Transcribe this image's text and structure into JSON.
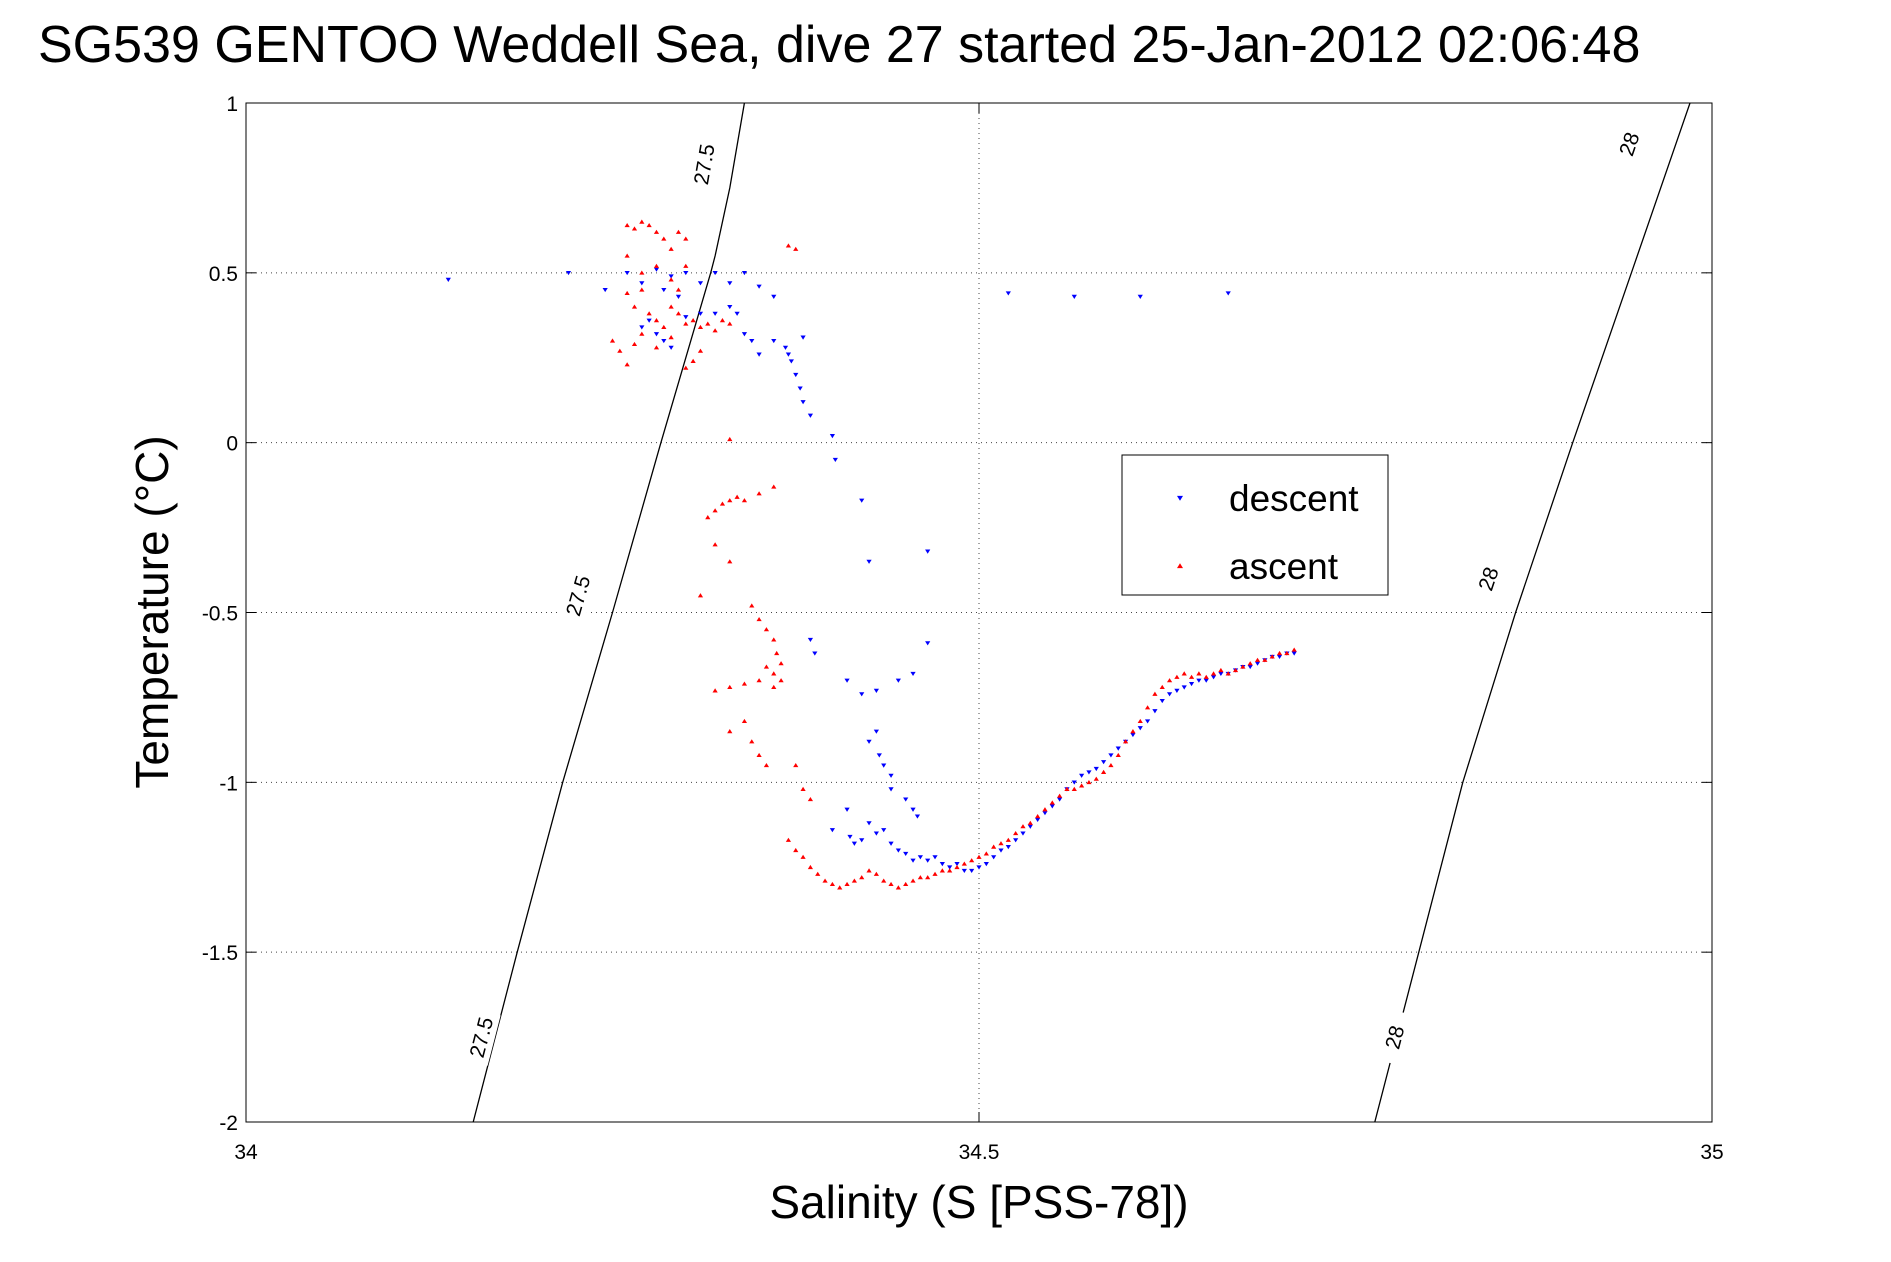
{
  "chart_data": {
    "type": "scatter",
    "title": "SG539 GENTOO Weddell Sea, dive 27 started 25-Jan-2012 02:06:48",
    "xlabel": "Salinity (S [PSS-78])",
    "ylabel": "Temperature (°C)",
    "xlim": [
      34,
      35
    ],
    "ylim": [
      -2,
      1
    ],
    "grid": true,
    "x_ticks": [
      {
        "value": 34,
        "label": "34"
      },
      {
        "value": 34.5,
        "label": "34.5"
      },
      {
        "value": 35,
        "label": "35"
      }
    ],
    "y_ticks": [
      {
        "value": 1,
        "label": "1"
      },
      {
        "value": 0.5,
        "label": "0.5"
      },
      {
        "value": 0,
        "label": "0"
      },
      {
        "value": -0.5,
        "label": "-0.5"
      },
      {
        "value": -1,
        "label": "-1"
      },
      {
        "value": -1.5,
        "label": "-1.5"
      },
      {
        "value": -2,
        "label": "-2"
      }
    ],
    "legend_position": "center-right",
    "series": [
      {
        "name": "descent",
        "color": "#0000ff",
        "marker": "triangle-down",
        "points": [
          [
            34.138,
            0.48
          ],
          [
            34.22,
            0.5
          ],
          [
            34.245,
            0.45
          ],
          [
            34.26,
            0.5
          ],
          [
            34.27,
            0.47
          ],
          [
            34.28,
            0.51
          ],
          [
            34.285,
            0.45
          ],
          [
            34.29,
            0.49
          ],
          [
            34.295,
            0.43
          ],
          [
            34.3,
            0.5
          ],
          [
            34.31,
            0.47
          ],
          [
            34.32,
            0.5
          ],
          [
            34.33,
            0.47
          ],
          [
            34.34,
            0.5
          ],
          [
            34.35,
            0.46
          ],
          [
            34.36,
            0.43
          ],
          [
            34.27,
            0.34
          ],
          [
            34.275,
            0.36
          ],
          [
            34.28,
            0.32
          ],
          [
            34.285,
            0.3
          ],
          [
            34.29,
            0.28
          ],
          [
            34.3,
            0.37
          ],
          [
            34.31,
            0.38
          ],
          [
            34.32,
            0.38
          ],
          [
            34.33,
            0.4
          ],
          [
            34.335,
            0.38
          ],
          [
            34.34,
            0.32
          ],
          [
            34.345,
            0.3
          ],
          [
            34.35,
            0.26
          ],
          [
            34.36,
            0.3
          ],
          [
            34.368,
            0.28
          ],
          [
            34.37,
            0.26
          ],
          [
            34.372,
            0.24
          ],
          [
            34.375,
            0.2
          ],
          [
            34.378,
            0.16
          ],
          [
            34.38,
            0.12
          ],
          [
            34.385,
            0.08
          ],
          [
            34.4,
            0.02
          ],
          [
            34.402,
            -0.05
          ],
          [
            34.38,
            0.31
          ],
          [
            34.42,
            -0.17
          ],
          [
            34.385,
            -0.58
          ],
          [
            34.388,
            -0.62
          ],
          [
            34.41,
            -0.7
          ],
          [
            34.42,
            -0.74
          ],
          [
            34.43,
            -0.73
          ],
          [
            34.445,
            -0.7
          ],
          [
            34.455,
            -0.68
          ],
          [
            34.465,
            -0.59
          ],
          [
            34.425,
            -0.88
          ],
          [
            34.43,
            -0.85
          ],
          [
            34.432,
            -0.92
          ],
          [
            34.435,
            -0.95
          ],
          [
            34.44,
            -0.98
          ],
          [
            34.44,
            -1.02
          ],
          [
            34.45,
            -1.05
          ],
          [
            34.455,
            -1.08
          ],
          [
            34.458,
            -1.1
          ],
          [
            34.4,
            -1.14
          ],
          [
            34.41,
            -1.08
          ],
          [
            34.412,
            -1.16
          ],
          [
            34.415,
            -1.18
          ],
          [
            34.42,
            -1.17
          ],
          [
            34.425,
            -1.12
          ],
          [
            34.43,
            -1.15
          ],
          [
            34.435,
            -1.14
          ],
          [
            34.44,
            -1.18
          ],
          [
            34.445,
            -1.2
          ],
          [
            34.45,
            -1.21
          ],
          [
            34.455,
            -1.23
          ],
          [
            34.46,
            -1.22
          ],
          [
            34.465,
            -1.23
          ],
          [
            34.47,
            -1.22
          ],
          [
            34.475,
            -1.24
          ],
          [
            34.48,
            -1.25
          ],
          [
            34.485,
            -1.24
          ],
          [
            34.49,
            -1.26
          ],
          [
            34.495,
            -1.26
          ],
          [
            34.5,
            -1.25
          ],
          [
            34.505,
            -1.24
          ],
          [
            34.51,
            -1.22
          ],
          [
            34.515,
            -1.2
          ],
          [
            34.52,
            -1.19
          ],
          [
            34.525,
            -1.17
          ],
          [
            34.53,
            -1.15
          ],
          [
            34.535,
            -1.13
          ],
          [
            34.54,
            -1.11
          ],
          [
            34.545,
            -1.09
          ],
          [
            34.55,
            -1.07
          ],
          [
            34.555,
            -1.05
          ],
          [
            34.56,
            -1.02
          ],
          [
            34.565,
            -1.0
          ],
          [
            34.57,
            -0.98
          ],
          [
            34.575,
            -0.97
          ],
          [
            34.58,
            -0.96
          ],
          [
            34.585,
            -0.94
          ],
          [
            34.59,
            -0.92
          ],
          [
            34.595,
            -0.9
          ],
          [
            34.6,
            -0.88
          ],
          [
            34.605,
            -0.86
          ],
          [
            34.61,
            -0.84
          ],
          [
            34.615,
            -0.82
          ],
          [
            34.62,
            -0.79
          ],
          [
            34.625,
            -0.76
          ],
          [
            34.63,
            -0.74
          ],
          [
            34.635,
            -0.73
          ],
          [
            34.64,
            -0.72
          ],
          [
            34.645,
            -0.71
          ],
          [
            34.65,
            -0.7
          ],
          [
            34.655,
            -0.7
          ],
          [
            34.66,
            -0.69
          ],
          [
            34.665,
            -0.68
          ],
          [
            34.67,
            -0.68
          ],
          [
            34.675,
            -0.67
          ],
          [
            34.68,
            -0.66
          ],
          [
            34.685,
            -0.66
          ],
          [
            34.69,
            -0.65
          ],
          [
            34.695,
            -0.64
          ],
          [
            34.7,
            -0.63
          ],
          [
            34.705,
            -0.63
          ],
          [
            34.71,
            -0.62
          ],
          [
            34.715,
            -0.62
          ],
          [
            34.465,
            -0.32
          ],
          [
            34.425,
            -0.35
          ],
          [
            34.52,
            0.44
          ],
          [
            34.565,
            0.43
          ],
          [
            34.61,
            0.43
          ],
          [
            34.67,
            0.44
          ]
        ]
      },
      {
        "name": "ascent",
        "color": "#ff0000",
        "marker": "triangle-up",
        "points": [
          [
            34.26,
            0.64
          ],
          [
            34.265,
            0.63
          ],
          [
            34.27,
            0.65
          ],
          [
            34.275,
            0.64
          ],
          [
            34.28,
            0.62
          ],
          [
            34.285,
            0.6
          ],
          [
            34.29,
            0.57
          ],
          [
            34.295,
            0.62
          ],
          [
            34.3,
            0.6
          ],
          [
            34.26,
            0.55
          ],
          [
            34.27,
            0.5
          ],
          [
            34.28,
            0.52
          ],
          [
            34.29,
            0.48
          ],
          [
            34.295,
            0.45
          ],
          [
            34.3,
            0.52
          ],
          [
            34.26,
            0.44
          ],
          [
            34.265,
            0.4
          ],
          [
            34.27,
            0.45
          ],
          [
            34.275,
            0.38
          ],
          [
            34.28,
            0.36
          ],
          [
            34.285,
            0.34
          ],
          [
            34.29,
            0.4
          ],
          [
            34.295,
            0.38
          ],
          [
            34.3,
            0.35
          ],
          [
            34.305,
            0.36
          ],
          [
            34.31,
            0.34
          ],
          [
            34.315,
            0.35
          ],
          [
            34.32,
            0.33
          ],
          [
            34.325,
            0.36
          ],
          [
            34.33,
            0.35
          ],
          [
            34.25,
            0.3
          ],
          [
            34.255,
            0.27
          ],
          [
            34.26,
            0.23
          ],
          [
            34.265,
            0.29
          ],
          [
            34.27,
            0.32
          ],
          [
            34.28,
            0.28
          ],
          [
            34.29,
            0.31
          ],
          [
            34.3,
            0.22
          ],
          [
            34.305,
            0.24
          ],
          [
            34.31,
            0.27
          ],
          [
            34.37,
            0.58
          ],
          [
            34.375,
            0.57
          ],
          [
            34.33,
            0.01
          ],
          [
            34.315,
            -0.22
          ],
          [
            34.32,
            -0.2
          ],
          [
            34.325,
            -0.18
          ],
          [
            34.33,
            -0.17
          ],
          [
            34.335,
            -0.16
          ],
          [
            34.34,
            -0.17
          ],
          [
            34.35,
            -0.15
          ],
          [
            34.36,
            -0.13
          ],
          [
            34.32,
            -0.3
          ],
          [
            34.33,
            -0.35
          ],
          [
            34.31,
            -0.45
          ],
          [
            34.345,
            -0.48
          ],
          [
            34.35,
            -0.52
          ],
          [
            34.355,
            -0.55
          ],
          [
            34.36,
            -0.58
          ],
          [
            34.362,
            -0.62
          ],
          [
            34.365,
            -0.65
          ],
          [
            34.36,
            -0.68
          ],
          [
            34.35,
            -0.7
          ],
          [
            34.34,
            -0.71
          ],
          [
            34.33,
            -0.72
          ],
          [
            34.32,
            -0.73
          ],
          [
            34.36,
            -0.72
          ],
          [
            34.365,
            -0.7
          ],
          [
            34.355,
            -0.66
          ],
          [
            34.34,
            -0.82
          ],
          [
            34.33,
            -0.85
          ],
          [
            34.345,
            -0.88
          ],
          [
            34.35,
            -0.92
          ],
          [
            34.355,
            -0.95
          ],
          [
            34.375,
            -0.95
          ],
          [
            34.38,
            -1.02
          ],
          [
            34.385,
            -1.05
          ],
          [
            34.37,
            -1.17
          ],
          [
            34.375,
            -1.2
          ],
          [
            34.38,
            -1.22
          ],
          [
            34.385,
            -1.25
          ],
          [
            34.39,
            -1.27
          ],
          [
            34.395,
            -1.29
          ],
          [
            34.4,
            -1.3
          ],
          [
            34.405,
            -1.31
          ],
          [
            34.41,
            -1.3
          ],
          [
            34.415,
            -1.29
          ],
          [
            34.42,
            -1.28
          ],
          [
            34.425,
            -1.26
          ],
          [
            34.43,
            -1.27
          ],
          [
            34.435,
            -1.29
          ],
          [
            34.44,
            -1.3
          ],
          [
            34.445,
            -1.31
          ],
          [
            34.45,
            -1.3
          ],
          [
            34.455,
            -1.29
          ],
          [
            34.46,
            -1.28
          ],
          [
            34.465,
            -1.28
          ],
          [
            34.47,
            -1.27
          ],
          [
            34.475,
            -1.26
          ],
          [
            34.48,
            -1.26
          ],
          [
            34.485,
            -1.25
          ],
          [
            34.49,
            -1.24
          ],
          [
            34.495,
            -1.23
          ],
          [
            34.5,
            -1.22
          ],
          [
            34.505,
            -1.21
          ],
          [
            34.51,
            -1.19
          ],
          [
            34.515,
            -1.18
          ],
          [
            34.52,
            -1.17
          ],
          [
            34.525,
            -1.15
          ],
          [
            34.53,
            -1.13
          ],
          [
            34.535,
            -1.12
          ],
          [
            34.54,
            -1.1
          ],
          [
            34.545,
            -1.08
          ],
          [
            34.55,
            -1.06
          ],
          [
            34.555,
            -1.04
          ],
          [
            34.56,
            -1.02
          ],
          [
            34.565,
            -1.02
          ],
          [
            34.57,
            -1.01
          ],
          [
            34.575,
            -1.0
          ],
          [
            34.58,
            -0.99
          ],
          [
            34.585,
            -0.97
          ],
          [
            34.59,
            -0.95
          ],
          [
            34.595,
            -0.92
          ],
          [
            34.6,
            -0.88
          ],
          [
            34.605,
            -0.85
          ],
          [
            34.61,
            -0.82
          ],
          [
            34.615,
            -0.78
          ],
          [
            34.62,
            -0.74
          ],
          [
            34.625,
            -0.72
          ],
          [
            34.63,
            -0.7
          ],
          [
            34.635,
            -0.69
          ],
          [
            34.64,
            -0.68
          ],
          [
            34.645,
            -0.69
          ],
          [
            34.65,
            -0.68
          ],
          [
            34.655,
            -0.69
          ],
          [
            34.66,
            -0.68
          ],
          [
            34.665,
            -0.67
          ],
          [
            34.67,
            -0.68
          ],
          [
            34.675,
            -0.67
          ],
          [
            34.68,
            -0.66
          ],
          [
            34.685,
            -0.65
          ],
          [
            34.69,
            -0.64
          ],
          [
            34.695,
            -0.64
          ],
          [
            34.7,
            -0.63
          ],
          [
            34.705,
            -0.62
          ],
          [
            34.71,
            -0.62
          ],
          [
            34.715,
            -0.61
          ]
        ]
      }
    ],
    "isopycnals": [
      {
        "label": "27.5",
        "points": [
          [
            34.155,
            -2.0
          ],
          [
            34.185,
            -1.5
          ],
          [
            34.216,
            -1.0
          ],
          [
            34.25,
            -0.5
          ],
          [
            34.283,
            0.0
          ],
          [
            34.317,
            0.5
          ],
          [
            34.32,
            0.55
          ],
          [
            34.33,
            0.75
          ],
          [
            34.34,
            1.0
          ]
        ],
        "label_at": [
          [
            34.16,
            -1.75
          ],
          [
            34.226,
            -0.45
          ],
          [
            34.312,
            0.82
          ]
        ]
      },
      {
        "label": "28",
        "points": [
          [
            34.77,
            -2.0
          ],
          [
            34.8,
            -1.5
          ],
          [
            34.83,
            -1.0
          ],
          [
            34.866,
            -0.5
          ],
          [
            34.905,
            0.0
          ],
          [
            34.945,
            0.5
          ],
          [
            34.985,
            1.0
          ]
        ],
        "label_at": [
          [
            34.783,
            -1.75
          ],
          [
            34.847,
            -0.4
          ],
          [
            34.943,
            0.88
          ]
        ]
      }
    ]
  }
}
